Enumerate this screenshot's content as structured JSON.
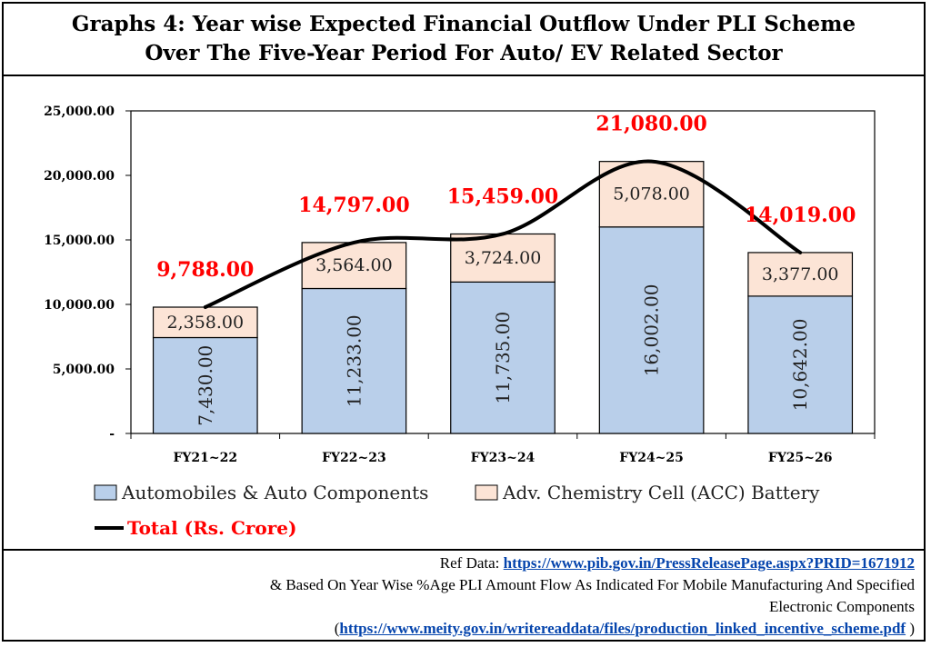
{
  "title": {
    "line1": "Graphs 4: Year wise Expected Financial Outflow Under PLI Scheme",
    "line2": "Over The Five-Year Period For Auto/ EV Related Sector"
  },
  "chart_data": {
    "type": "bar",
    "stacked": true,
    "categories": [
      "FY21~22",
      "FY22~23",
      "FY23~24",
      "FY24~25",
      "FY25~26"
    ],
    "series": [
      {
        "name": "Automobiles & Auto Components",
        "values": [
          7430.0,
          11233.0,
          11735.0,
          16002.0,
          10642.0
        ],
        "labels": [
          "7,430.00",
          "11,233.00",
          "11,735.00",
          "16,002.00",
          "10,642.00"
        ],
        "color": "#b9cfea"
      },
      {
        "name": "Adv. Chemistry Cell (ACC) Battery",
        "values": [
          2358.0,
          3564.0,
          3724.0,
          5078.0,
          3377.0
        ],
        "labels": [
          "2,358.00",
          "3,564.00",
          "3,724.00",
          "5,078.00",
          "3,377.00"
        ],
        "color": "#fce4d6"
      }
    ],
    "line": {
      "name": "Total (Rs. Crore)",
      "values": [
        9788.0,
        14797.0,
        15459.0,
        21080.0,
        14019.0
      ],
      "labels": [
        "9,788.00",
        "14,797.00",
        "15,459.00",
        "21,080.00",
        "14,019.00"
      ],
      "color": "#000000",
      "label_color": "#ff0000"
    },
    "ylim": [
      0,
      25000
    ],
    "y_ticks": [
      {
        "value": 0,
        "label": "-"
      },
      {
        "value": 5000,
        "label": "5,000.00"
      },
      {
        "value": 10000,
        "label": "10,000.00"
      },
      {
        "value": 15000,
        "label": "15,000.00"
      },
      {
        "value": 20000,
        "label": "20,000.00"
      },
      {
        "value": 25000,
        "label": "25,000.00"
      }
    ],
    "grid": false,
    "legend_position": "bottom-left"
  },
  "reference": {
    "line1_prefix": "Ref Data: ",
    "line1_link": "https://www.pib.gov.in/PressReleasePage.aspx?PRID=1671912",
    "line2": "& Based On Year Wise %Age PLI Amount Flow As Indicated For Mobile Manufacturing And Specified",
    "line3": "Electronic Components",
    "line4_prefix": "(",
    "line4_link": "https://www.meity.gov.in/writereaddata/files/production_linked_incentive_scheme.pdf",
    "line4_suffix": " )"
  }
}
